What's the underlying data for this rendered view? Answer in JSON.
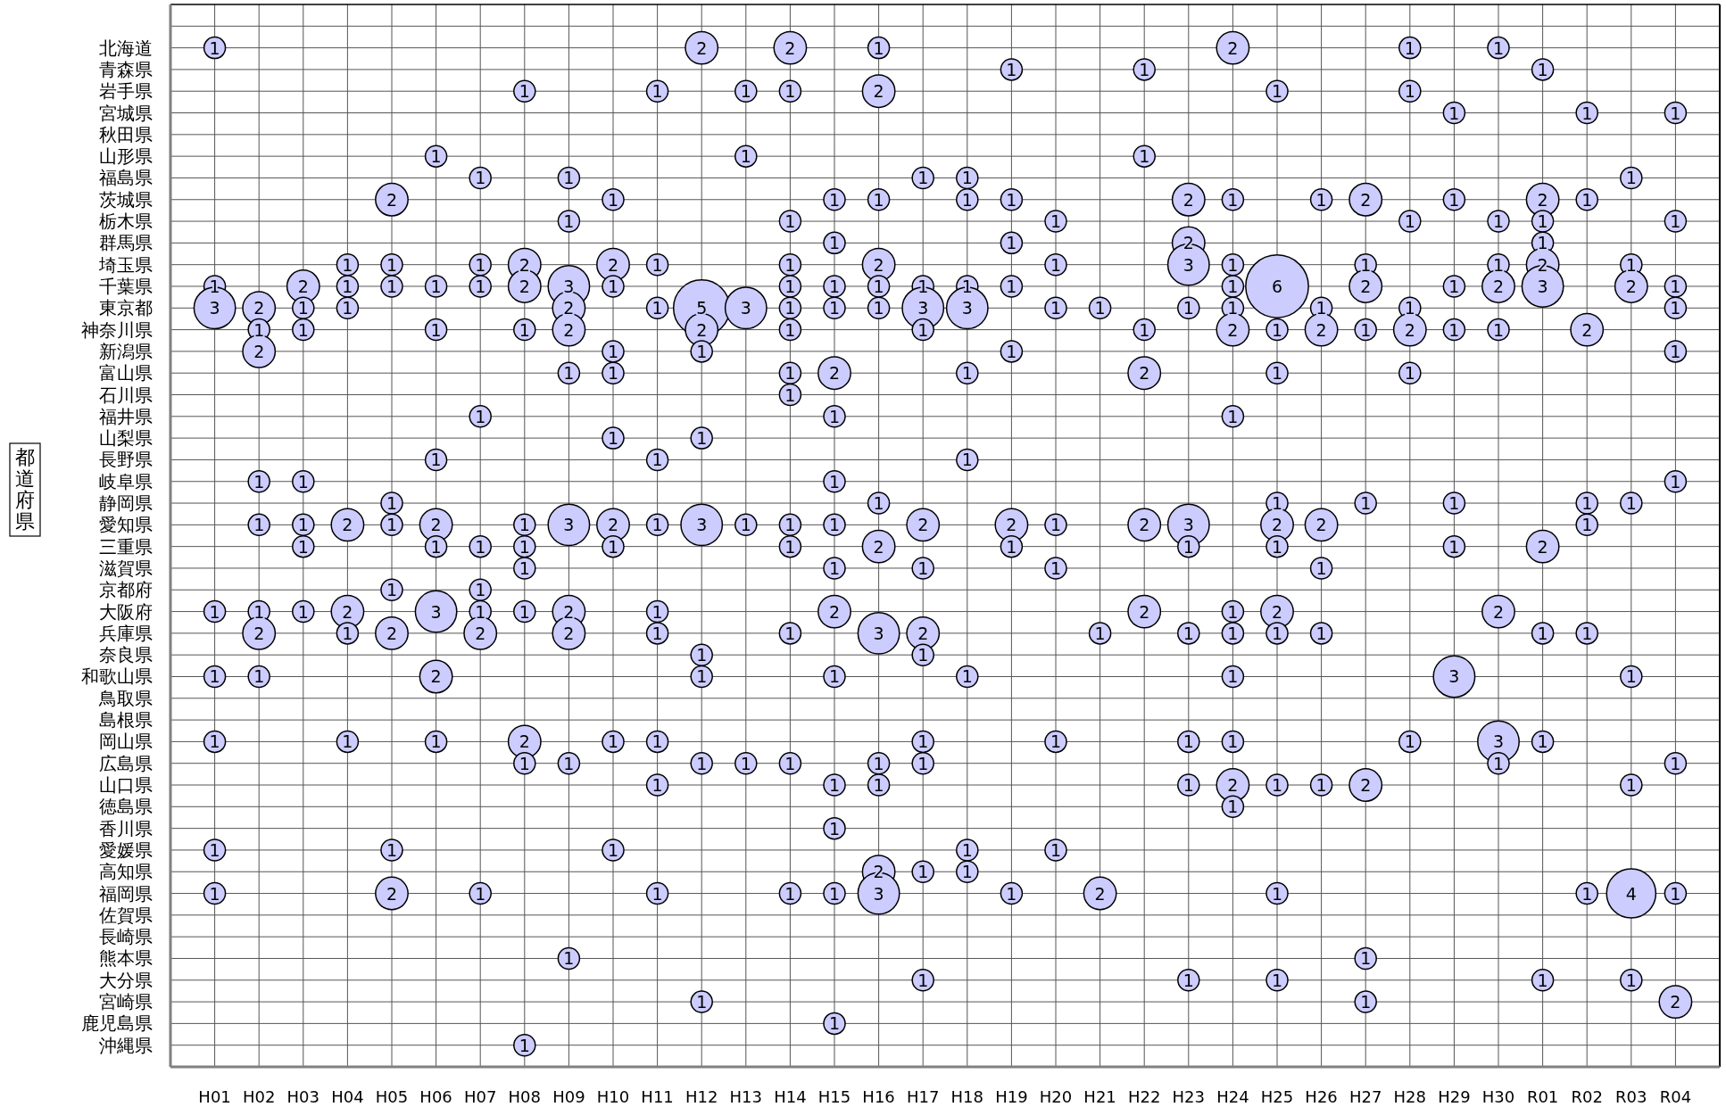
{
  "chart_data": {
    "type": "heatmap",
    "ylabel": "都道府県",
    "color": "#ccccff",
    "data_labels": true,
    "grid": true,
    "categories": [
      "H01",
      "H02",
      "H03",
      "H04",
      "H05",
      "H06",
      "H07",
      "H08",
      "H09",
      "H10",
      "H11",
      "H12",
      "H13",
      "H14",
      "H15",
      "H16",
      "H17",
      "H18",
      "H19",
      "H20",
      "H21",
      "H22",
      "H23",
      "H24",
      "H25",
      "H26",
      "H27",
      "H28",
      "H29",
      "H30",
      "R01",
      "R02",
      "R03",
      "R04"
    ],
    "y_categories": [
      "北海道",
      "青森県",
      "岩手県",
      "宮城県",
      "秋田県",
      "山形県",
      "福島県",
      "茨城県",
      "栃木県",
      "群馬県",
      "埼玉県",
      "千葉県",
      "東京都",
      "神奈川県",
      "新潟県",
      "富山県",
      "石川県",
      "福井県",
      "山梨県",
      "長野県",
      "岐阜県",
      "静岡県",
      "愛知県",
      "三重県",
      "滋賀県",
      "京都府",
      "大阪府",
      "兵庫県",
      "奈良県",
      "和歌山県",
      "鳥取県",
      "島根県",
      "岡山県",
      "広島県",
      "山口県",
      "徳島県",
      "香川県",
      "愛媛県",
      "高知県",
      "福岡県",
      "佐賀県",
      "長崎県",
      "熊本県",
      "大分県",
      "宮崎県",
      "鹿児島県",
      "沖縄県"
    ],
    "cells": [
      [
        1,
        null,
        null,
        null,
        null,
        null,
        null,
        null,
        null,
        null,
        null,
        2,
        null,
        2,
        null,
        1,
        null,
        null,
        null,
        null,
        null,
        null,
        null,
        2,
        null,
        null,
        null,
        1,
        null,
        1,
        null,
        null,
        null,
        null
      ],
      [
        null,
        null,
        null,
        null,
        null,
        null,
        null,
        null,
        null,
        null,
        null,
        null,
        null,
        null,
        null,
        null,
        null,
        null,
        1,
        null,
        null,
        1,
        null,
        null,
        null,
        null,
        null,
        null,
        null,
        null,
        1,
        null,
        null,
        null
      ],
      [
        null,
        null,
        null,
        null,
        null,
        null,
        null,
        1,
        null,
        null,
        1,
        null,
        1,
        1,
        null,
        2,
        null,
        null,
        null,
        null,
        null,
        null,
        null,
        null,
        1,
        null,
        null,
        1,
        null,
        null,
        null,
        null,
        null,
        null
      ],
      [
        null,
        null,
        null,
        null,
        null,
        null,
        null,
        null,
        null,
        null,
        null,
        null,
        null,
        null,
        null,
        null,
        null,
        null,
        null,
        null,
        null,
        null,
        null,
        null,
        null,
        null,
        null,
        null,
        1,
        null,
        null,
        1,
        null,
        1
      ],
      [
        null,
        null,
        null,
        null,
        null,
        null,
        null,
        null,
        null,
        null,
        null,
        null,
        null,
        null,
        null,
        null,
        null,
        null,
        null,
        null,
        null,
        null,
        null,
        null,
        null,
        null,
        null,
        null,
        null,
        null,
        null,
        null,
        null,
        null
      ],
      [
        null,
        null,
        null,
        null,
        null,
        1,
        null,
        null,
        null,
        null,
        null,
        null,
        1,
        null,
        null,
        null,
        null,
        null,
        null,
        null,
        null,
        1,
        null,
        null,
        null,
        null,
        null,
        null,
        null,
        null,
        null,
        null,
        null,
        null
      ],
      [
        null,
        null,
        null,
        null,
        null,
        null,
        1,
        null,
        1,
        null,
        null,
        null,
        null,
        null,
        null,
        null,
        1,
        1,
        null,
        null,
        null,
        null,
        null,
        null,
        null,
        null,
        null,
        null,
        null,
        null,
        null,
        null,
        1,
        null
      ],
      [
        null,
        null,
        null,
        null,
        2,
        null,
        null,
        null,
        null,
        1,
        null,
        null,
        null,
        null,
        1,
        1,
        null,
        1,
        1,
        null,
        null,
        null,
        2,
        1,
        null,
        1,
        2,
        null,
        1,
        null,
        2,
        1,
        null,
        null
      ],
      [
        null,
        null,
        null,
        null,
        null,
        null,
        null,
        null,
        1,
        null,
        null,
        null,
        null,
        1,
        null,
        null,
        null,
        null,
        null,
        1,
        null,
        null,
        null,
        null,
        null,
        null,
        null,
        1,
        null,
        1,
        1,
        null,
        null,
        1
      ],
      [
        null,
        null,
        null,
        null,
        null,
        null,
        null,
        null,
        null,
        null,
        null,
        null,
        null,
        null,
        1,
        null,
        null,
        null,
        1,
        null,
        null,
        null,
        2,
        null,
        null,
        null,
        null,
        null,
        null,
        null,
        1,
        null,
        null,
        null
      ],
      [
        null,
        null,
        null,
        1,
        1,
        null,
        1,
        2,
        null,
        2,
        1,
        null,
        null,
        1,
        null,
        2,
        null,
        null,
        null,
        1,
        null,
        null,
        3,
        1,
        null,
        null,
        1,
        null,
        null,
        1,
        2,
        null,
        1,
        null
      ],
      [
        1,
        null,
        2,
        1,
        1,
        1,
        1,
        2,
        3,
        1,
        null,
        null,
        null,
        1,
        1,
        1,
        1,
        1,
        1,
        null,
        null,
        null,
        null,
        1,
        6,
        null,
        2,
        null,
        1,
        2,
        3,
        null,
        2,
        1
      ],
      [
        3,
        2,
        1,
        1,
        null,
        null,
        null,
        null,
        2,
        null,
        1,
        5,
        3,
        1,
        1,
        1,
        3,
        3,
        null,
        1,
        1,
        null,
        1,
        1,
        null,
        1,
        null,
        1,
        null,
        null,
        null,
        null,
        null,
        1
      ],
      [
        null,
        1,
        1,
        null,
        null,
        1,
        null,
        1,
        2,
        null,
        null,
        2,
        null,
        1,
        null,
        null,
        1,
        null,
        null,
        null,
        null,
        1,
        null,
        2,
        1,
        2,
        1,
        2,
        1,
        1,
        null,
        2,
        null,
        null
      ],
      [
        null,
        2,
        null,
        null,
        null,
        null,
        null,
        null,
        null,
        1,
        null,
        1,
        null,
        null,
        null,
        null,
        null,
        null,
        1,
        null,
        null,
        null,
        null,
        null,
        null,
        null,
        null,
        null,
        null,
        null,
        null,
        null,
        null,
        1
      ],
      [
        null,
        null,
        null,
        null,
        null,
        null,
        null,
        null,
        1,
        1,
        null,
        null,
        null,
        1,
        2,
        null,
        null,
        1,
        null,
        null,
        null,
        2,
        null,
        null,
        1,
        null,
        null,
        1,
        null,
        null,
        null,
        null,
        null,
        null
      ],
      [
        null,
        null,
        null,
        null,
        null,
        null,
        null,
        null,
        null,
        null,
        null,
        null,
        null,
        1,
        null,
        null,
        null,
        null,
        null,
        null,
        null,
        null,
        null,
        null,
        null,
        null,
        null,
        null,
        null,
        null,
        null,
        null,
        null,
        null
      ],
      [
        null,
        null,
        null,
        null,
        null,
        null,
        1,
        null,
        null,
        null,
        null,
        null,
        null,
        null,
        1,
        null,
        null,
        null,
        null,
        null,
        null,
        null,
        null,
        1,
        null,
        null,
        null,
        null,
        null,
        null,
        null,
        null,
        null,
        null
      ],
      [
        null,
        null,
        null,
        null,
        null,
        null,
        null,
        null,
        null,
        1,
        null,
        1,
        null,
        null,
        null,
        null,
        null,
        null,
        null,
        null,
        null,
        null,
        null,
        null,
        null,
        null,
        null,
        null,
        null,
        null,
        null,
        null,
        null,
        null
      ],
      [
        null,
        null,
        null,
        null,
        null,
        1,
        null,
        null,
        null,
        null,
        1,
        null,
        null,
        null,
        null,
        null,
        null,
        1,
        null,
        null,
        null,
        null,
        null,
        null,
        null,
        null,
        null,
        null,
        null,
        null,
        null,
        null,
        null,
        null
      ],
      [
        null,
        1,
        1,
        null,
        null,
        null,
        null,
        null,
        null,
        null,
        null,
        null,
        null,
        null,
        1,
        null,
        null,
        null,
        null,
        null,
        null,
        null,
        null,
        null,
        null,
        null,
        null,
        null,
        null,
        null,
        null,
        null,
        null,
        1
      ],
      [
        null,
        null,
        null,
        null,
        1,
        null,
        null,
        null,
        null,
        null,
        null,
        null,
        null,
        null,
        null,
        1,
        null,
        null,
        null,
        null,
        null,
        null,
        null,
        null,
        1,
        null,
        1,
        null,
        1,
        null,
        null,
        1,
        1,
        null
      ],
      [
        null,
        1,
        1,
        2,
        1,
        2,
        null,
        1,
        3,
        2,
        1,
        3,
        1,
        1,
        1,
        null,
        2,
        null,
        2,
        1,
        null,
        2,
        3,
        null,
        2,
        2,
        null,
        null,
        null,
        null,
        null,
        1,
        null,
        null
      ],
      [
        null,
        null,
        1,
        null,
        null,
        1,
        1,
        1,
        null,
        1,
        null,
        null,
        null,
        1,
        null,
        2,
        null,
        null,
        1,
        null,
        null,
        null,
        1,
        null,
        1,
        null,
        null,
        null,
        1,
        null,
        2,
        null,
        null,
        null
      ],
      [
        null,
        null,
        null,
        null,
        null,
        null,
        null,
        1,
        null,
        null,
        null,
        null,
        null,
        null,
        1,
        null,
        1,
        null,
        null,
        1,
        null,
        null,
        null,
        null,
        null,
        1,
        null,
        null,
        null,
        null,
        null,
        null,
        null,
        null
      ],
      [
        null,
        null,
        null,
        null,
        1,
        null,
        1,
        null,
        null,
        null,
        null,
        null,
        null,
        null,
        null,
        null,
        null,
        null,
        null,
        null,
        null,
        null,
        null,
        null,
        null,
        null,
        null,
        null,
        null,
        null,
        null,
        null,
        null,
        null
      ],
      [
        1,
        1,
        1,
        2,
        null,
        3,
        1,
        1,
        2,
        null,
        1,
        null,
        null,
        null,
        2,
        null,
        null,
        null,
        null,
        null,
        null,
        2,
        null,
        1,
        2,
        null,
        null,
        null,
        null,
        2,
        null,
        null,
        null,
        null
      ],
      [
        null,
        2,
        null,
        1,
        2,
        null,
        2,
        null,
        2,
        null,
        1,
        null,
        null,
        1,
        null,
        3,
        2,
        null,
        null,
        null,
        1,
        null,
        1,
        1,
        1,
        1,
        null,
        null,
        null,
        null,
        1,
        1,
        null,
        null
      ],
      [
        null,
        null,
        null,
        null,
        null,
        null,
        null,
        null,
        null,
        null,
        null,
        1,
        null,
        null,
        null,
        null,
        1,
        null,
        null,
        null,
        null,
        null,
        null,
        null,
        null,
        null,
        null,
        null,
        null,
        null,
        null,
        null,
        null,
        null
      ],
      [
        1,
        1,
        null,
        null,
        null,
        2,
        null,
        null,
        null,
        null,
        null,
        1,
        null,
        null,
        1,
        null,
        null,
        1,
        null,
        null,
        null,
        null,
        null,
        1,
        null,
        null,
        null,
        null,
        3,
        null,
        null,
        null,
        1,
        null
      ],
      [
        null,
        null,
        null,
        null,
        null,
        null,
        null,
        null,
        null,
        null,
        null,
        null,
        null,
        null,
        null,
        null,
        null,
        null,
        null,
        null,
        null,
        null,
        null,
        null,
        null,
        null,
        null,
        null,
        null,
        null,
        null,
        null,
        null,
        null
      ],
      [
        null,
        null,
        null,
        null,
        null,
        null,
        null,
        null,
        null,
        null,
        null,
        null,
        null,
        null,
        null,
        null,
        null,
        null,
        null,
        null,
        null,
        null,
        null,
        null,
        null,
        null,
        null,
        null,
        null,
        null,
        null,
        null,
        null,
        null
      ],
      [
        1,
        null,
        null,
        1,
        null,
        1,
        null,
        2,
        null,
        1,
        1,
        null,
        null,
        null,
        null,
        null,
        1,
        null,
        null,
        1,
        null,
        null,
        1,
        1,
        null,
        null,
        null,
        1,
        null,
        3,
        1,
        null,
        null,
        null
      ],
      [
        null,
        null,
        null,
        null,
        null,
        null,
        null,
        1,
        1,
        null,
        null,
        1,
        1,
        1,
        null,
        1,
        1,
        null,
        null,
        null,
        null,
        null,
        null,
        null,
        null,
        null,
        null,
        null,
        null,
        1,
        null,
        null,
        null,
        1
      ],
      [
        null,
        null,
        null,
        null,
        null,
        null,
        null,
        null,
        null,
        null,
        1,
        null,
        null,
        null,
        1,
        1,
        null,
        null,
        null,
        null,
        null,
        null,
        1,
        2,
        1,
        1,
        2,
        null,
        null,
        null,
        null,
        null,
        1,
        null
      ],
      [
        null,
        null,
        null,
        null,
        null,
        null,
        null,
        null,
        null,
        null,
        null,
        null,
        null,
        null,
        null,
        null,
        null,
        null,
        null,
        null,
        null,
        null,
        null,
        1,
        null,
        null,
        null,
        null,
        null,
        null,
        null,
        null,
        null,
        null
      ],
      [
        null,
        null,
        null,
        null,
        null,
        null,
        null,
        null,
        null,
        null,
        null,
        null,
        null,
        null,
        1,
        null,
        null,
        null,
        null,
        null,
        null,
        null,
        null,
        null,
        null,
        null,
        null,
        null,
        null,
        null,
        null,
        null,
        null,
        null
      ],
      [
        1,
        null,
        null,
        null,
        1,
        null,
        null,
        null,
        null,
        1,
        null,
        null,
        null,
        null,
        null,
        null,
        null,
        1,
        null,
        1,
        null,
        null,
        null,
        null,
        null,
        null,
        null,
        null,
        null,
        null,
        null,
        null,
        null,
        null
      ],
      [
        null,
        null,
        null,
        null,
        null,
        null,
        null,
        null,
        null,
        null,
        null,
        null,
        null,
        null,
        null,
        2,
        1,
        1,
        null,
        null,
        null,
        null,
        null,
        null,
        null,
        null,
        null,
        null,
        null,
        null,
        null,
        null,
        null,
        null
      ],
      [
        1,
        null,
        null,
        null,
        2,
        null,
        1,
        null,
        null,
        null,
        1,
        null,
        null,
        1,
        1,
        3,
        null,
        null,
        1,
        null,
        2,
        null,
        null,
        null,
        1,
        null,
        null,
        null,
        null,
        null,
        null,
        1,
        4,
        1
      ],
      [
        null,
        null,
        null,
        null,
        null,
        null,
        null,
        null,
        null,
        null,
        null,
        null,
        null,
        null,
        null,
        null,
        null,
        null,
        null,
        null,
        null,
        null,
        null,
        null,
        null,
        null,
        null,
        null,
        null,
        null,
        null,
        null,
        null,
        null
      ],
      [
        null,
        null,
        null,
        null,
        null,
        null,
        null,
        null,
        null,
        null,
        null,
        null,
        null,
        null,
        null,
        null,
        null,
        null,
        null,
        null,
        null,
        null,
        null,
        null,
        null,
        null,
        null,
        null,
        null,
        null,
        null,
        null,
        null,
        null
      ],
      [
        null,
        null,
        null,
        null,
        null,
        null,
        null,
        null,
        1,
        null,
        null,
        null,
        null,
        null,
        null,
        null,
        null,
        null,
        null,
        null,
        null,
        null,
        null,
        null,
        null,
        null,
        1,
        null,
        null,
        null,
        null,
        null,
        null,
        null
      ],
      [
        null,
        null,
        null,
        null,
        null,
        null,
        null,
        null,
        null,
        null,
        null,
        null,
        null,
        null,
        null,
        null,
        1,
        null,
        null,
        null,
        null,
        null,
        1,
        null,
        1,
        null,
        null,
        null,
        null,
        null,
        1,
        null,
        1,
        null
      ],
      [
        null,
        null,
        null,
        null,
        null,
        null,
        null,
        null,
        null,
        null,
        null,
        1,
        null,
        null,
        null,
        null,
        null,
        null,
        null,
        null,
        null,
        null,
        null,
        null,
        null,
        null,
        1,
        null,
        null,
        null,
        null,
        null,
        null,
        2
      ],
      [
        null,
        null,
        null,
        null,
        null,
        null,
        null,
        null,
        null,
        null,
        null,
        null,
        null,
        null,
        1,
        null,
        null,
        null,
        null,
        null,
        null,
        null,
        null,
        null,
        null,
        null,
        null,
        null,
        null,
        null,
        null,
        null,
        null,
        null
      ],
      [
        null,
        null,
        null,
        null,
        null,
        null,
        null,
        1,
        null,
        null,
        null,
        null,
        null,
        null,
        null,
        null,
        null,
        null,
        null,
        null,
        null,
        null,
        null,
        null,
        null,
        null,
        null,
        null,
        null,
        null,
        null,
        null,
        null,
        null
      ]
    ]
  }
}
